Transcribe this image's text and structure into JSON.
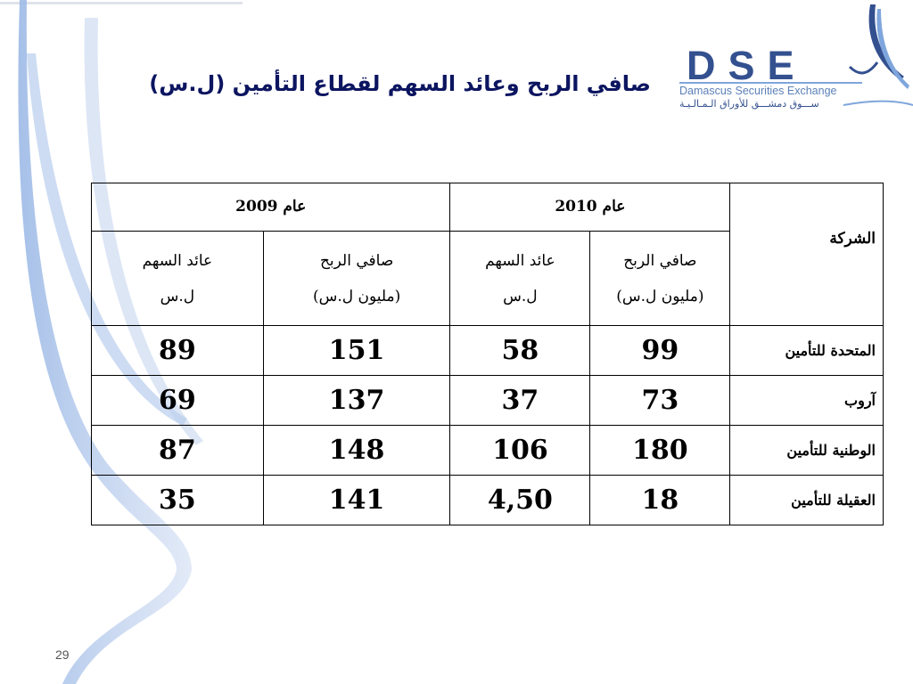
{
  "title": "صافي الربح وعائد السهم لقطاع التأمين (ل.س)",
  "logo": {
    "letters": "DSE",
    "english": "Damascus Securities Exchange",
    "arabic": "ســـوق دمشـــق للأوراق الـمـالـيـة"
  },
  "table": {
    "company_header": "الشركة",
    "years": [
      "عام 2010",
      "عام 2009"
    ],
    "subheaders": [
      {
        "line1": "صافي الربح",
        "line2": "(مليون ل.س)"
      },
      {
        "line1": "عائد السهم",
        "line2": "ل.س"
      },
      {
        "line1": "صافي الربح",
        "line2": "(مليون ل.س)"
      },
      {
        "line1": "عائد السهم",
        "line2": "ل.س"
      }
    ],
    "rows": [
      {
        "company": "المتحدة للتأمين",
        "values": [
          "99",
          "58",
          "151",
          "89"
        ]
      },
      {
        "company": "آروب",
        "values": [
          "73",
          "37",
          "137",
          "69"
        ]
      },
      {
        "company": "الوطنية للتأمين",
        "values": [
          "180",
          "106",
          "148",
          "87"
        ]
      },
      {
        "company": "العقيلة للتأمين",
        "values": [
          "18",
          "4,50",
          "141",
          "35"
        ]
      }
    ]
  },
  "page_number": "29",
  "colors": {
    "title": "#0c1560",
    "logo": "#33508f",
    "decoration": "#7fa6dc"
  }
}
